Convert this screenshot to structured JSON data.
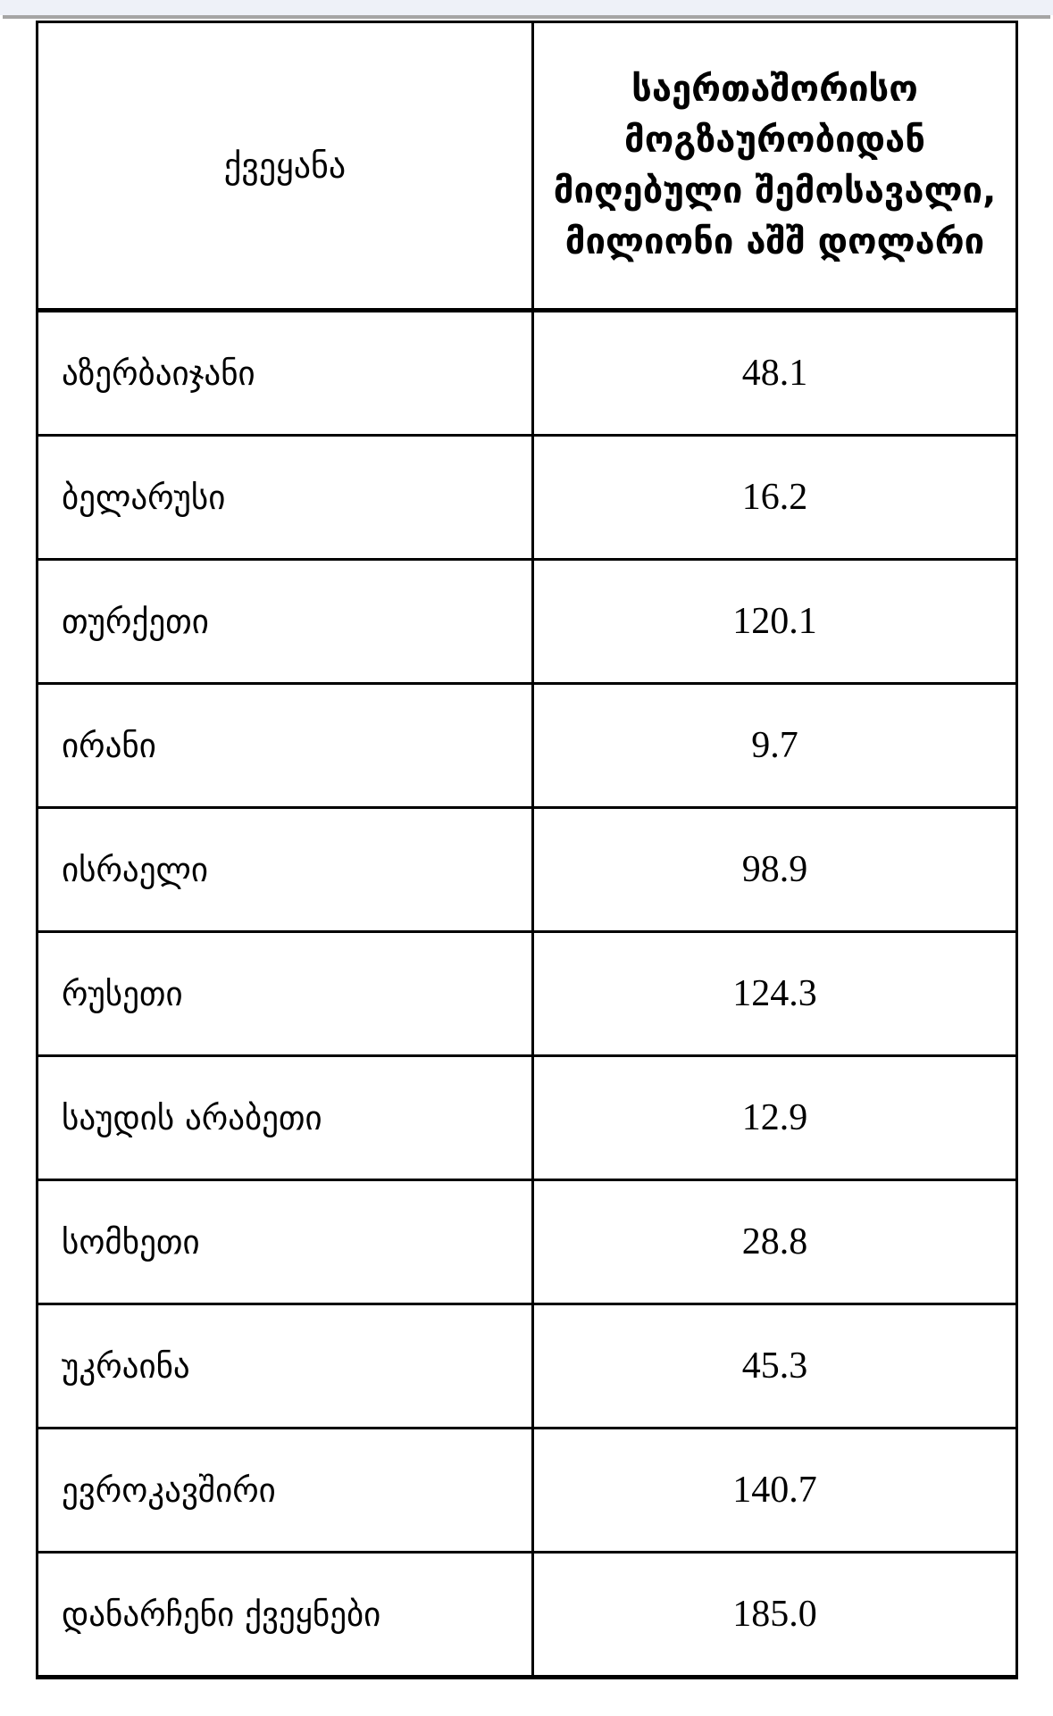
{
  "chrome": {
    "bar_color": "#eef1f8",
    "rule_color": "#a5a5a5"
  },
  "page": {
    "background": "#ffffff",
    "border_color": "#000000"
  },
  "table": {
    "columns": [
      {
        "id": "country",
        "label": "ქვეყანა"
      },
      {
        "id": "income",
        "label": "საერთაშორისო\nმოგზაურობიდან\nმიღებული შემოსავალი,\nმილიონი აშშ დოლარი"
      }
    ],
    "rows": [
      {
        "country": "აზერბაიჯანი",
        "income": "48.1"
      },
      {
        "country": "ბელარუსი",
        "income": "16.2"
      },
      {
        "country": "თურქეთი",
        "income": "120.1"
      },
      {
        "country": "ირანი",
        "income": "9.7"
      },
      {
        "country": "ისრაელი",
        "income": "98.9"
      },
      {
        "country": "რუსეთი",
        "income": "124.3"
      },
      {
        "country": "საუდის არაბეთი",
        "income": "12.9"
      },
      {
        "country": "სომხეთი",
        "income": "28.8"
      },
      {
        "country": "უკრაინა",
        "income": "45.3"
      },
      {
        "country": "ევროკავშირი",
        "income": "140.7"
      },
      {
        "country": "დანარჩენი ქვეყნები",
        "income": "185.0"
      }
    ]
  }
}
